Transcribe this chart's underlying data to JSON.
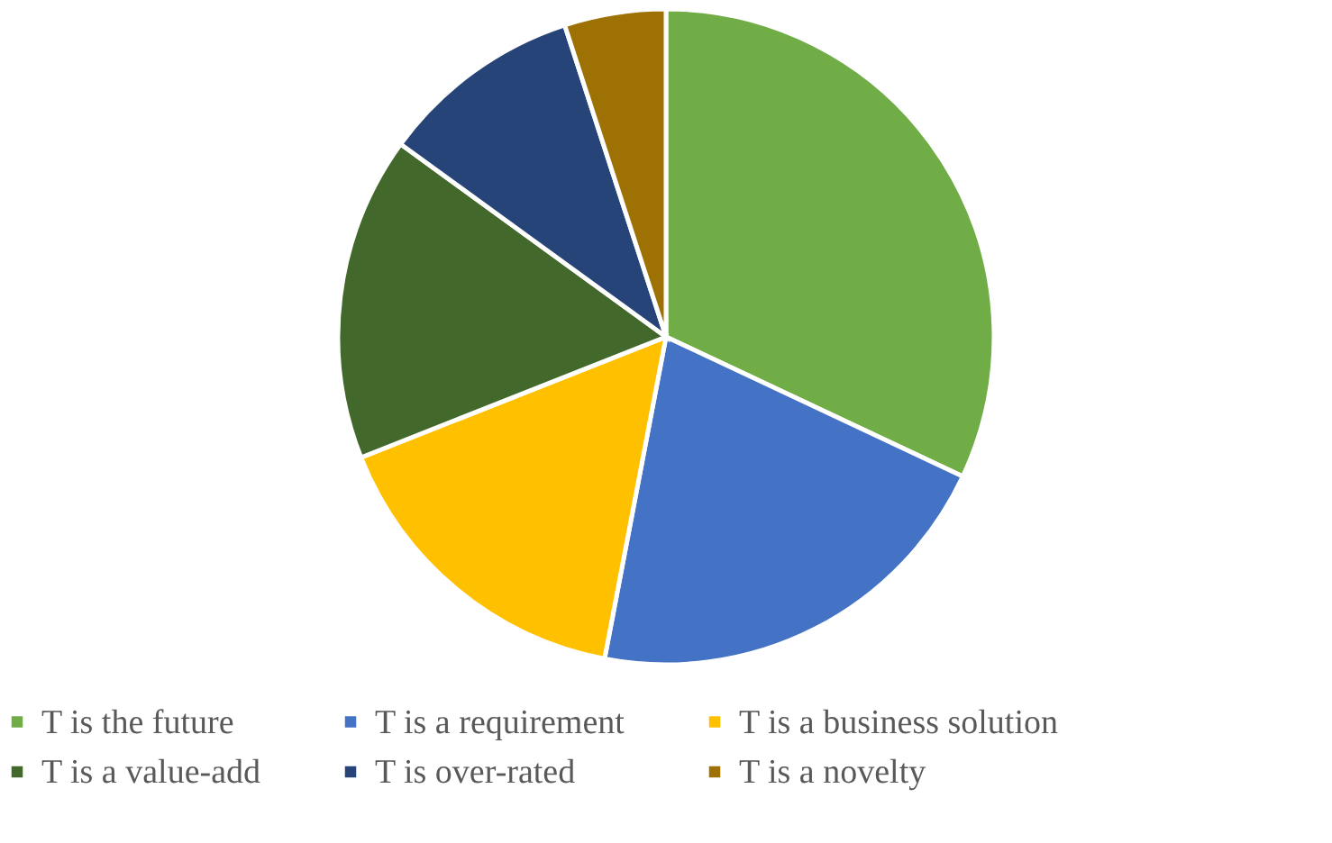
{
  "chart_data": {
    "type": "pie",
    "categories": [
      "T is the future",
      "T is a requirement",
      "T is a business solution",
      "T is a value-add",
      "T is over-rated",
      "T is a novelty"
    ],
    "values": [
      32,
      21,
      16,
      16,
      10,
      5
    ],
    "colors": [
      "#70ad47",
      "#4472c4",
      "#ffc000",
      "#43682b",
      "#264478",
      "#9e7104"
    ],
    "legend": "bottom"
  }
}
